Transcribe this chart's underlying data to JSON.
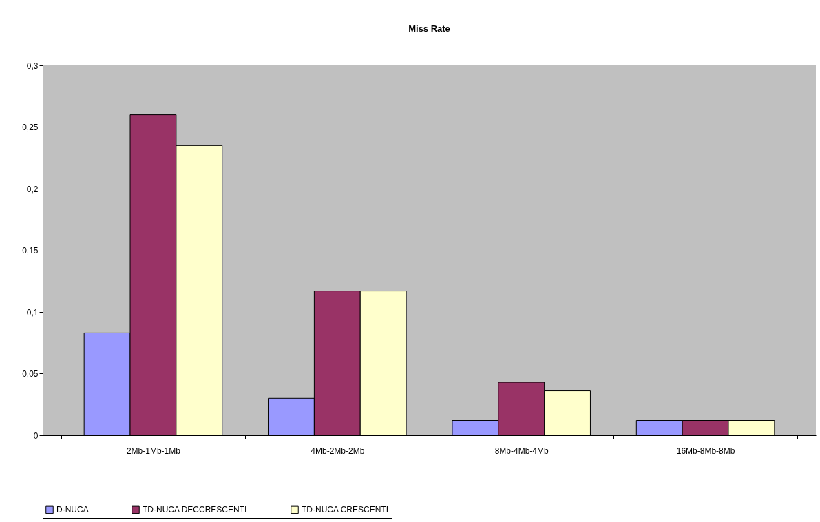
{
  "chart_data": {
    "type": "bar",
    "title": "Miss Rate",
    "categories": [
      "2Mb-1Mb-1Mb",
      "4Mb-2Mb-2Mb",
      "8Mb-4Mb-4Mb",
      "16Mb-8Mb-8Mb"
    ],
    "series": [
      {
        "name": "D-NUCA",
        "color": "#9999ff",
        "values": [
          0.083,
          0.03,
          0.012,
          0.012
        ]
      },
      {
        "name": "TD-NUCA DECCRESCENTI",
        "color": "#993366",
        "values": [
          0.26,
          0.117,
          0.043,
          0.012
        ]
      },
      {
        "name": "TD-NUCA CRESCENTI",
        "color": "#ffffcc",
        "values": [
          0.235,
          0.117,
          0.036,
          0.012
        ]
      }
    ],
    "ylim": [
      0,
      0.3
    ],
    "yticks": [
      0,
      {
        "value": 0.05,
        "label": "0,05"
      },
      {
        "value": 0.1,
        "label": "0,1"
      },
      {
        "value": 0.15,
        "label": "0,15"
      },
      {
        "value": 0.2,
        "label": "0,2"
      },
      {
        "value": 0.25,
        "label": "0,25"
      },
      {
        "value": 0.3,
        "label": "0,3"
      }
    ],
    "grid": false,
    "legend": "bottom"
  }
}
